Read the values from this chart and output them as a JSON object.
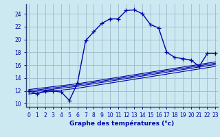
{
  "xlabel": "Graphe des températures (°c)",
  "background_color": "#cce8f0",
  "grid_color": "#99bbcc",
  "line_color": "#0000aa",
  "x_hours": [
    0,
    1,
    2,
    3,
    4,
    5,
    6,
    7,
    8,
    9,
    10,
    11,
    12,
    13,
    14,
    15,
    16,
    17,
    18,
    19,
    20,
    21,
    22,
    23
  ],
  "main_temps": [
    12.0,
    11.5,
    12.0,
    12.0,
    11.8,
    10.5,
    13.2,
    19.8,
    21.2,
    22.5,
    23.2,
    23.2,
    24.5,
    24.6,
    24.0,
    22.3,
    21.8,
    18.0,
    17.2,
    17.0,
    16.8,
    15.8,
    17.8,
    17.8
  ],
  "ref_line1": [
    12.2,
    12.35,
    12.5,
    12.65,
    12.8,
    12.95,
    13.1,
    13.3,
    13.5,
    13.7,
    13.9,
    14.1,
    14.3,
    14.5,
    14.7,
    14.9,
    15.1,
    15.3,
    15.5,
    15.7,
    15.9,
    16.1,
    16.3,
    16.5
  ],
  "ref_line2": [
    12.0,
    12.15,
    12.3,
    12.45,
    12.6,
    12.75,
    12.9,
    13.1,
    13.3,
    13.5,
    13.7,
    13.9,
    14.1,
    14.3,
    14.5,
    14.7,
    14.9,
    15.1,
    15.3,
    15.5,
    15.7,
    15.9,
    16.1,
    16.3
  ],
  "ref_line3": [
    11.8,
    11.95,
    12.1,
    12.25,
    12.4,
    12.55,
    12.7,
    12.9,
    13.1,
    13.3,
    13.5,
    13.7,
    13.9,
    14.1,
    14.3,
    14.5,
    14.7,
    14.9,
    15.1,
    15.3,
    15.5,
    15.7,
    15.9,
    16.1
  ],
  "ref_line4": [
    11.5,
    11.65,
    11.8,
    11.95,
    12.1,
    12.25,
    12.4,
    12.6,
    12.8,
    13.0,
    13.2,
    13.4,
    13.6,
    13.8,
    14.0,
    14.2,
    14.4,
    14.6,
    14.8,
    15.0,
    15.2,
    15.4,
    15.6,
    15.8
  ],
  "ylim": [
    9.5,
    25.5
  ],
  "yticks": [
    10,
    12,
    14,
    16,
    18,
    20,
    22,
    24
  ],
  "xlim": [
    -0.3,
    23.3
  ]
}
